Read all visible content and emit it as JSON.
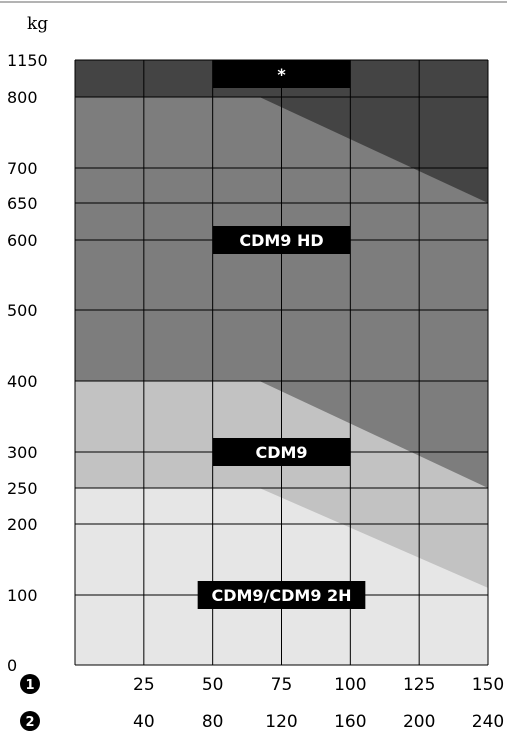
{
  "chart_data": {
    "type": "area",
    "y_unit": "kg",
    "y_ticks": [
      0,
      100,
      200,
      250,
      300,
      400,
      500,
      600,
      650,
      700,
      800,
      1150
    ],
    "x_ticks": [
      0,
      25,
      50,
      75,
      100,
      125,
      150
    ],
    "x_axes": [
      {
        "marker": "1",
        "labels": [
          "25",
          "50",
          "75",
          "100",
          "125",
          "150"
        ]
      },
      {
        "marker": "2",
        "labels": [
          "40",
          "80",
          "120",
          "160",
          "200",
          "240"
        ]
      }
    ],
    "grid": true,
    "zones": [
      {
        "label": "CDM9/CDM9 2H",
        "color": "#e6e6e6",
        "x": [
          0,
          67,
          150
        ],
        "y_upper": [
          250,
          250,
          110
        ]
      },
      {
        "label": "CDM9",
        "color": "#c2c2c2",
        "x": [
          0,
          67,
          150
        ],
        "y_upper": [
          400,
          400,
          250
        ]
      },
      {
        "label": "CDM9 HD",
        "color": "#7d7d7d",
        "x": [
          0,
          67,
          150
        ],
        "y_upper": [
          800,
          800,
          650
        ]
      },
      {
        "label": "*",
        "color": "#444444",
        "x": [
          0,
          150
        ],
        "y_upper": [
          1150,
          1150
        ]
      }
    ],
    "zone_label_x": [
      50,
      100
    ],
    "zone_label_y": {
      "CDM9/CDM9 2H": 100,
      "CDM9": 300,
      "CDM9 HD": 600,
      "*": 1150
    }
  }
}
